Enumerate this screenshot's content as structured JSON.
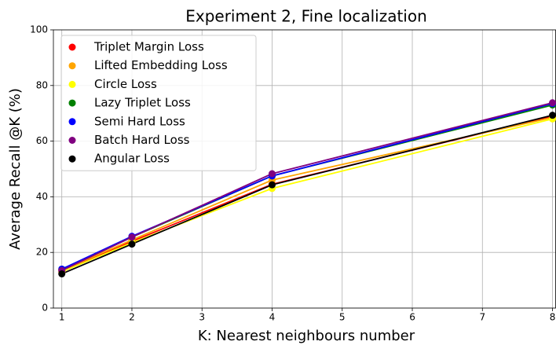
{
  "chart_data": {
    "type": "line",
    "title": "Experiment 2, Fine localization",
    "x_label": "K: Nearest neighbours number",
    "y_label": "Average Recall @K (%)",
    "x": [
      1,
      2,
      4,
      8
    ],
    "series": [
      {
        "name": "Triplet Margin Loss",
        "color": "red",
        "values": [
          13,
          24,
          44.5,
          69
        ]
      },
      {
        "name": "Lifted Embedding Loss",
        "color": "orange",
        "values": [
          13.5,
          24.5,
          46,
          68.5
        ]
      },
      {
        "name": "Circle Loss",
        "color": "yellow",
        "values": [
          13,
          23.5,
          43,
          68
        ]
      },
      {
        "name": "Lazy Triplet Loss",
        "color": "green",
        "values": [
          14,
          25.5,
          47.5,
          73
        ]
      },
      {
        "name": "Semi Hard Loss",
        "color": "blue",
        "values": [
          14,
          25.8,
          47.5,
          73.5
        ]
      },
      {
        "name": "Batch Hard Loss",
        "color": "purple",
        "values": [
          13.5,
          25.5,
          48.3,
          73.8
        ]
      },
      {
        "name": "Angular Loss",
        "color": "black",
        "values": [
          12.3,
          23,
          44.3,
          69.3
        ]
      }
    ],
    "xlim": [
      0.88,
      8.05
    ],
    "xticks": [
      1,
      2,
      3,
      4,
      5,
      6,
      7,
      8
    ],
    "ylim": [
      0,
      100
    ],
    "yticks": [
      0,
      20,
      40,
      60,
      80,
      100
    ],
    "grid": true,
    "legend": "upper left"
  }
}
